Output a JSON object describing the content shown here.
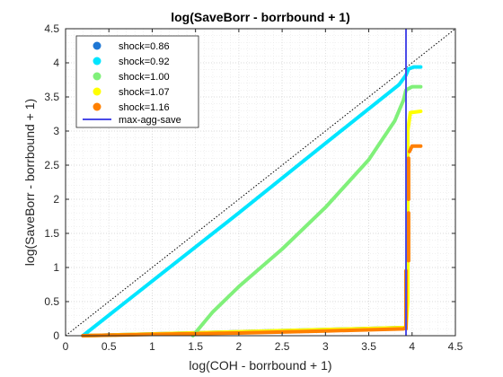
{
  "chart_data": {
    "type": "line",
    "title": "log(SaveBorr - borrbound + 1)",
    "xlabel": "log(COH - borrbound + 1)",
    "ylabel": "log(SaveBorr - borrbound + 1)",
    "xlim": [
      0,
      4.5
    ],
    "ylim": [
      0,
      4.5
    ],
    "xticks": [
      "0",
      "0.5",
      "1",
      "1.5",
      "2",
      "2.5",
      "3",
      "3.5",
      "4",
      "4.5"
    ],
    "yticks": [
      "0",
      "0.5",
      "1",
      "1.5",
      "2",
      "2.5",
      "3",
      "3.5",
      "4",
      "4.5"
    ],
    "grid": "dotted",
    "legend_position": "top-left",
    "colors": {
      "shock_0_86": "#1f77d4",
      "shock_0_92": "#00e5ff",
      "shock_1_00": "#80f07a",
      "shock_1_07": "#ffff00",
      "shock_1_16": "#ff8000",
      "max_agg_save": "#4a4ae8",
      "diagonal": "#000000"
    },
    "series": [
      {
        "name": "shock=0.86",
        "values": [
          [
            0.2,
            0.0
          ],
          [
            3.93,
            0.12
          ],
          [
            3.93,
            0.15
          ]
        ]
      },
      {
        "name": "shock=0.92",
        "values": [
          [
            0.2,
            0.0
          ],
          [
            1.0,
            0.8
          ],
          [
            2.0,
            1.8
          ],
          [
            3.0,
            2.82
          ],
          [
            3.85,
            3.68
          ],
          [
            3.93,
            3.82
          ],
          [
            3.96,
            3.91
          ],
          [
            4.02,
            3.94
          ],
          [
            4.1,
            3.94
          ]
        ]
      },
      {
        "name": "shock=1.00",
        "values": [
          [
            1.47,
            0.0
          ],
          [
            1.7,
            0.35
          ],
          [
            2.0,
            0.72
          ],
          [
            2.5,
            1.27
          ],
          [
            3.0,
            1.88
          ],
          [
            3.5,
            2.58
          ],
          [
            3.8,
            3.15
          ],
          [
            3.9,
            3.45
          ],
          [
            3.93,
            3.6
          ],
          [
            4.0,
            3.65
          ],
          [
            4.1,
            3.65
          ]
        ]
      },
      {
        "name": "shock=1.07",
        "values": [
          [
            0.2,
            0.0
          ],
          [
            3.93,
            0.12
          ],
          [
            3.95,
            0.5
          ],
          [
            3.95,
            3.0
          ],
          [
            3.98,
            3.27
          ],
          [
            4.1,
            3.29
          ]
        ]
      },
      {
        "name": "shock=1.16",
        "values": [
          [
            0.2,
            0.0
          ],
          [
            1.0,
            0.02
          ],
          [
            2.0,
            0.04
          ],
          [
            3.0,
            0.07
          ],
          [
            3.9,
            0.1
          ],
          [
            3.93,
            0.12
          ]
        ],
        "extra_segments": [
          [
            [
              3.93,
              0.1
            ],
            [
              3.93,
              0.95
            ]
          ],
          [
            [
              3.96,
              1.1
            ],
            [
              3.96,
              1.8
            ]
          ],
          [
            [
              3.96,
              2.0
            ],
            [
              3.96,
              2.6
            ]
          ],
          [
            [
              3.97,
              2.7
            ],
            [
              4.0,
              2.78
            ],
            [
              4.1,
              2.78
            ]
          ]
        ]
      },
      {
        "name": "max-agg-save",
        "type": "vline",
        "x": 3.93
      }
    ],
    "reference_line": {
      "type": "diagonal",
      "from": [
        0,
        0
      ],
      "to": [
        4.5,
        4.5
      ]
    }
  }
}
